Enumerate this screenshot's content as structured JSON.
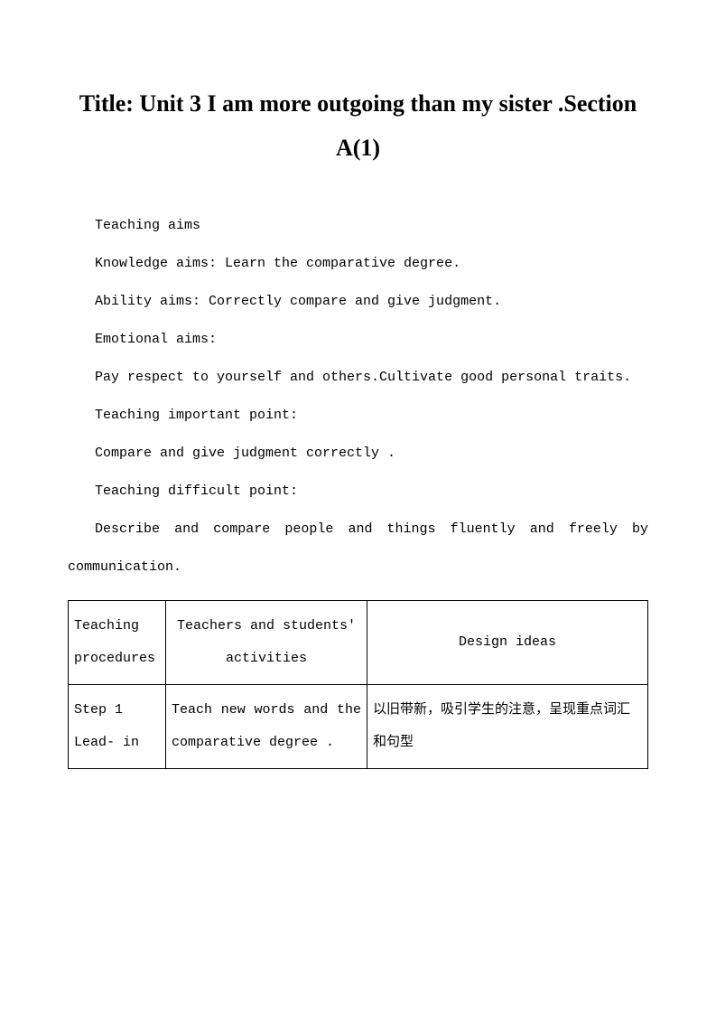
{
  "title": "Title: Unit 3 I am more outgoing than my sister .Section A(1)",
  "lines": {
    "teaching_aims": "Teaching aims",
    "knowledge_aims": "Knowledge aims: Learn the comparative degree.",
    "ability_aims": "Ability aims: Correctly compare and give judgment.",
    "emotional_aims_label": "Emotional aims:",
    "emotional_aims_text": "Pay respect to yourself and others.Cultivate good personal traits.",
    "important_label": "Teaching important point:",
    "important_text": "Compare and give judgment correctly .",
    "difficult_label": "Teaching difficult point:",
    "difficult_text": "Describe and compare people and things fluently and freely by communication."
  },
  "table": {
    "header": {
      "c1": "Teaching procedures",
      "c2": "Teachers and students' activities",
      "c3": "Design ideas"
    },
    "row1": {
      "c1": "Step 1 Lead- in",
      "c2": "Teach new words and the comparative degree .",
      "c3": "以旧带新，吸引学生的注意，呈现重点词汇和句型"
    }
  },
  "style": {
    "title_fontsize": 26,
    "body_fontsize": 15,
    "text_color": "#000000",
    "background_color": "#ffffff",
    "border_color": "#000000",
    "font_family": "SimSun"
  }
}
